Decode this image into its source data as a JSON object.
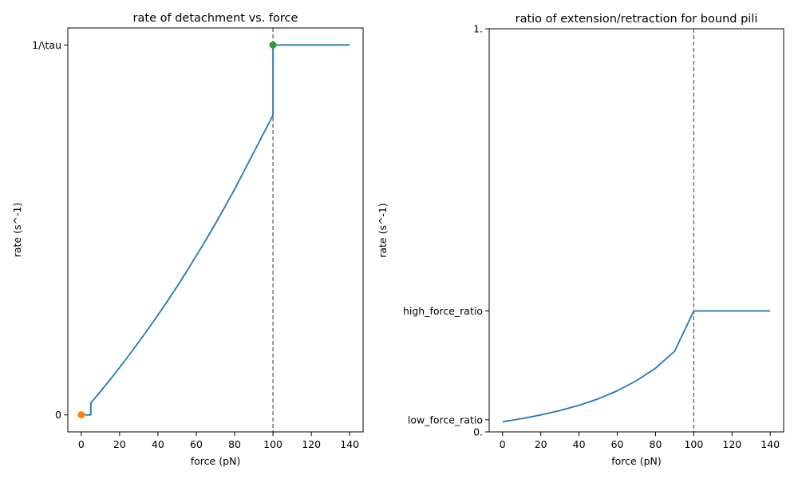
{
  "chart_data": [
    {
      "type": "line",
      "title": "rate of detachment vs. force",
      "xlabel": "force (pN)",
      "ylabel": "rate (s^-1)",
      "xlim": [
        -7,
        147
      ],
      "ylim": [
        -0.046,
        1.046
      ],
      "x_ticks": [
        0,
        20,
        40,
        60,
        80,
        100,
        120,
        140
      ],
      "x_tick_labels": [
        "0",
        "20",
        "40",
        "60",
        "80",
        "100",
        "120",
        "140"
      ],
      "y_ticks": [
        0,
        1
      ],
      "y_tick_labels": [
        "0",
        "1/\\tau"
      ],
      "grid": false,
      "series": [
        {
          "color": "#1f77b4",
          "x": [
            0,
            5,
            5,
            10,
            15,
            20,
            25,
            30,
            35,
            40,
            45,
            50,
            55,
            60,
            65,
            70,
            75,
            80,
            85,
            90,
            95,
            100,
            100,
            110,
            120,
            130,
            140
          ],
          "y": [
            0,
            0,
            0.032,
            0.063,
            0.095,
            0.128,
            0.162,
            0.197,
            0.233,
            0.27,
            0.308,
            0.347,
            0.388,
            0.43,
            0.473,
            0.517,
            0.563,
            0.61,
            0.66,
            0.71,
            0.76,
            0.81,
            1.0,
            1.0,
            1.0,
            1.0,
            1.0
          ]
        }
      ],
      "points": [
        {
          "x": 0,
          "y": 0,
          "color": "#ff7f0e"
        },
        {
          "x": 100,
          "y": 1,
          "color": "#2ca02c"
        }
      ],
      "vlines": [
        100
      ]
    },
    {
      "type": "line",
      "title": "ratio of extension/retraction for bound pili",
      "xlabel": "force (pN)",
      "ylabel": "rate (s^-1)",
      "xlim": [
        -7,
        147
      ],
      "ylim": [
        0,
        1
      ],
      "x_ticks": [
        0,
        20,
        40,
        60,
        80,
        100,
        120,
        140
      ],
      "x_tick_labels": [
        "0",
        "20",
        "40",
        "60",
        "80",
        "100",
        "120",
        "140"
      ],
      "y_ticks": [
        0,
        0.03,
        0.3,
        1
      ],
      "y_tick_labels": [
        "0.",
        "low_force_ratio",
        "high_force_ratio",
        "1."
      ],
      "grid": false,
      "series": [
        {
          "color": "#1f77b4",
          "x": [
            0,
            10,
            20,
            30,
            40,
            50,
            60,
            70,
            80,
            90,
            100,
            110,
            120,
            130,
            140
          ],
          "y": [
            0.025,
            0.033,
            0.042,
            0.053,
            0.066,
            0.082,
            0.102,
            0.127,
            0.158,
            0.2,
            0.3,
            0.3,
            0.3,
            0.3,
            0.3
          ]
        }
      ],
      "points": [],
      "vlines": [
        100
      ]
    }
  ]
}
